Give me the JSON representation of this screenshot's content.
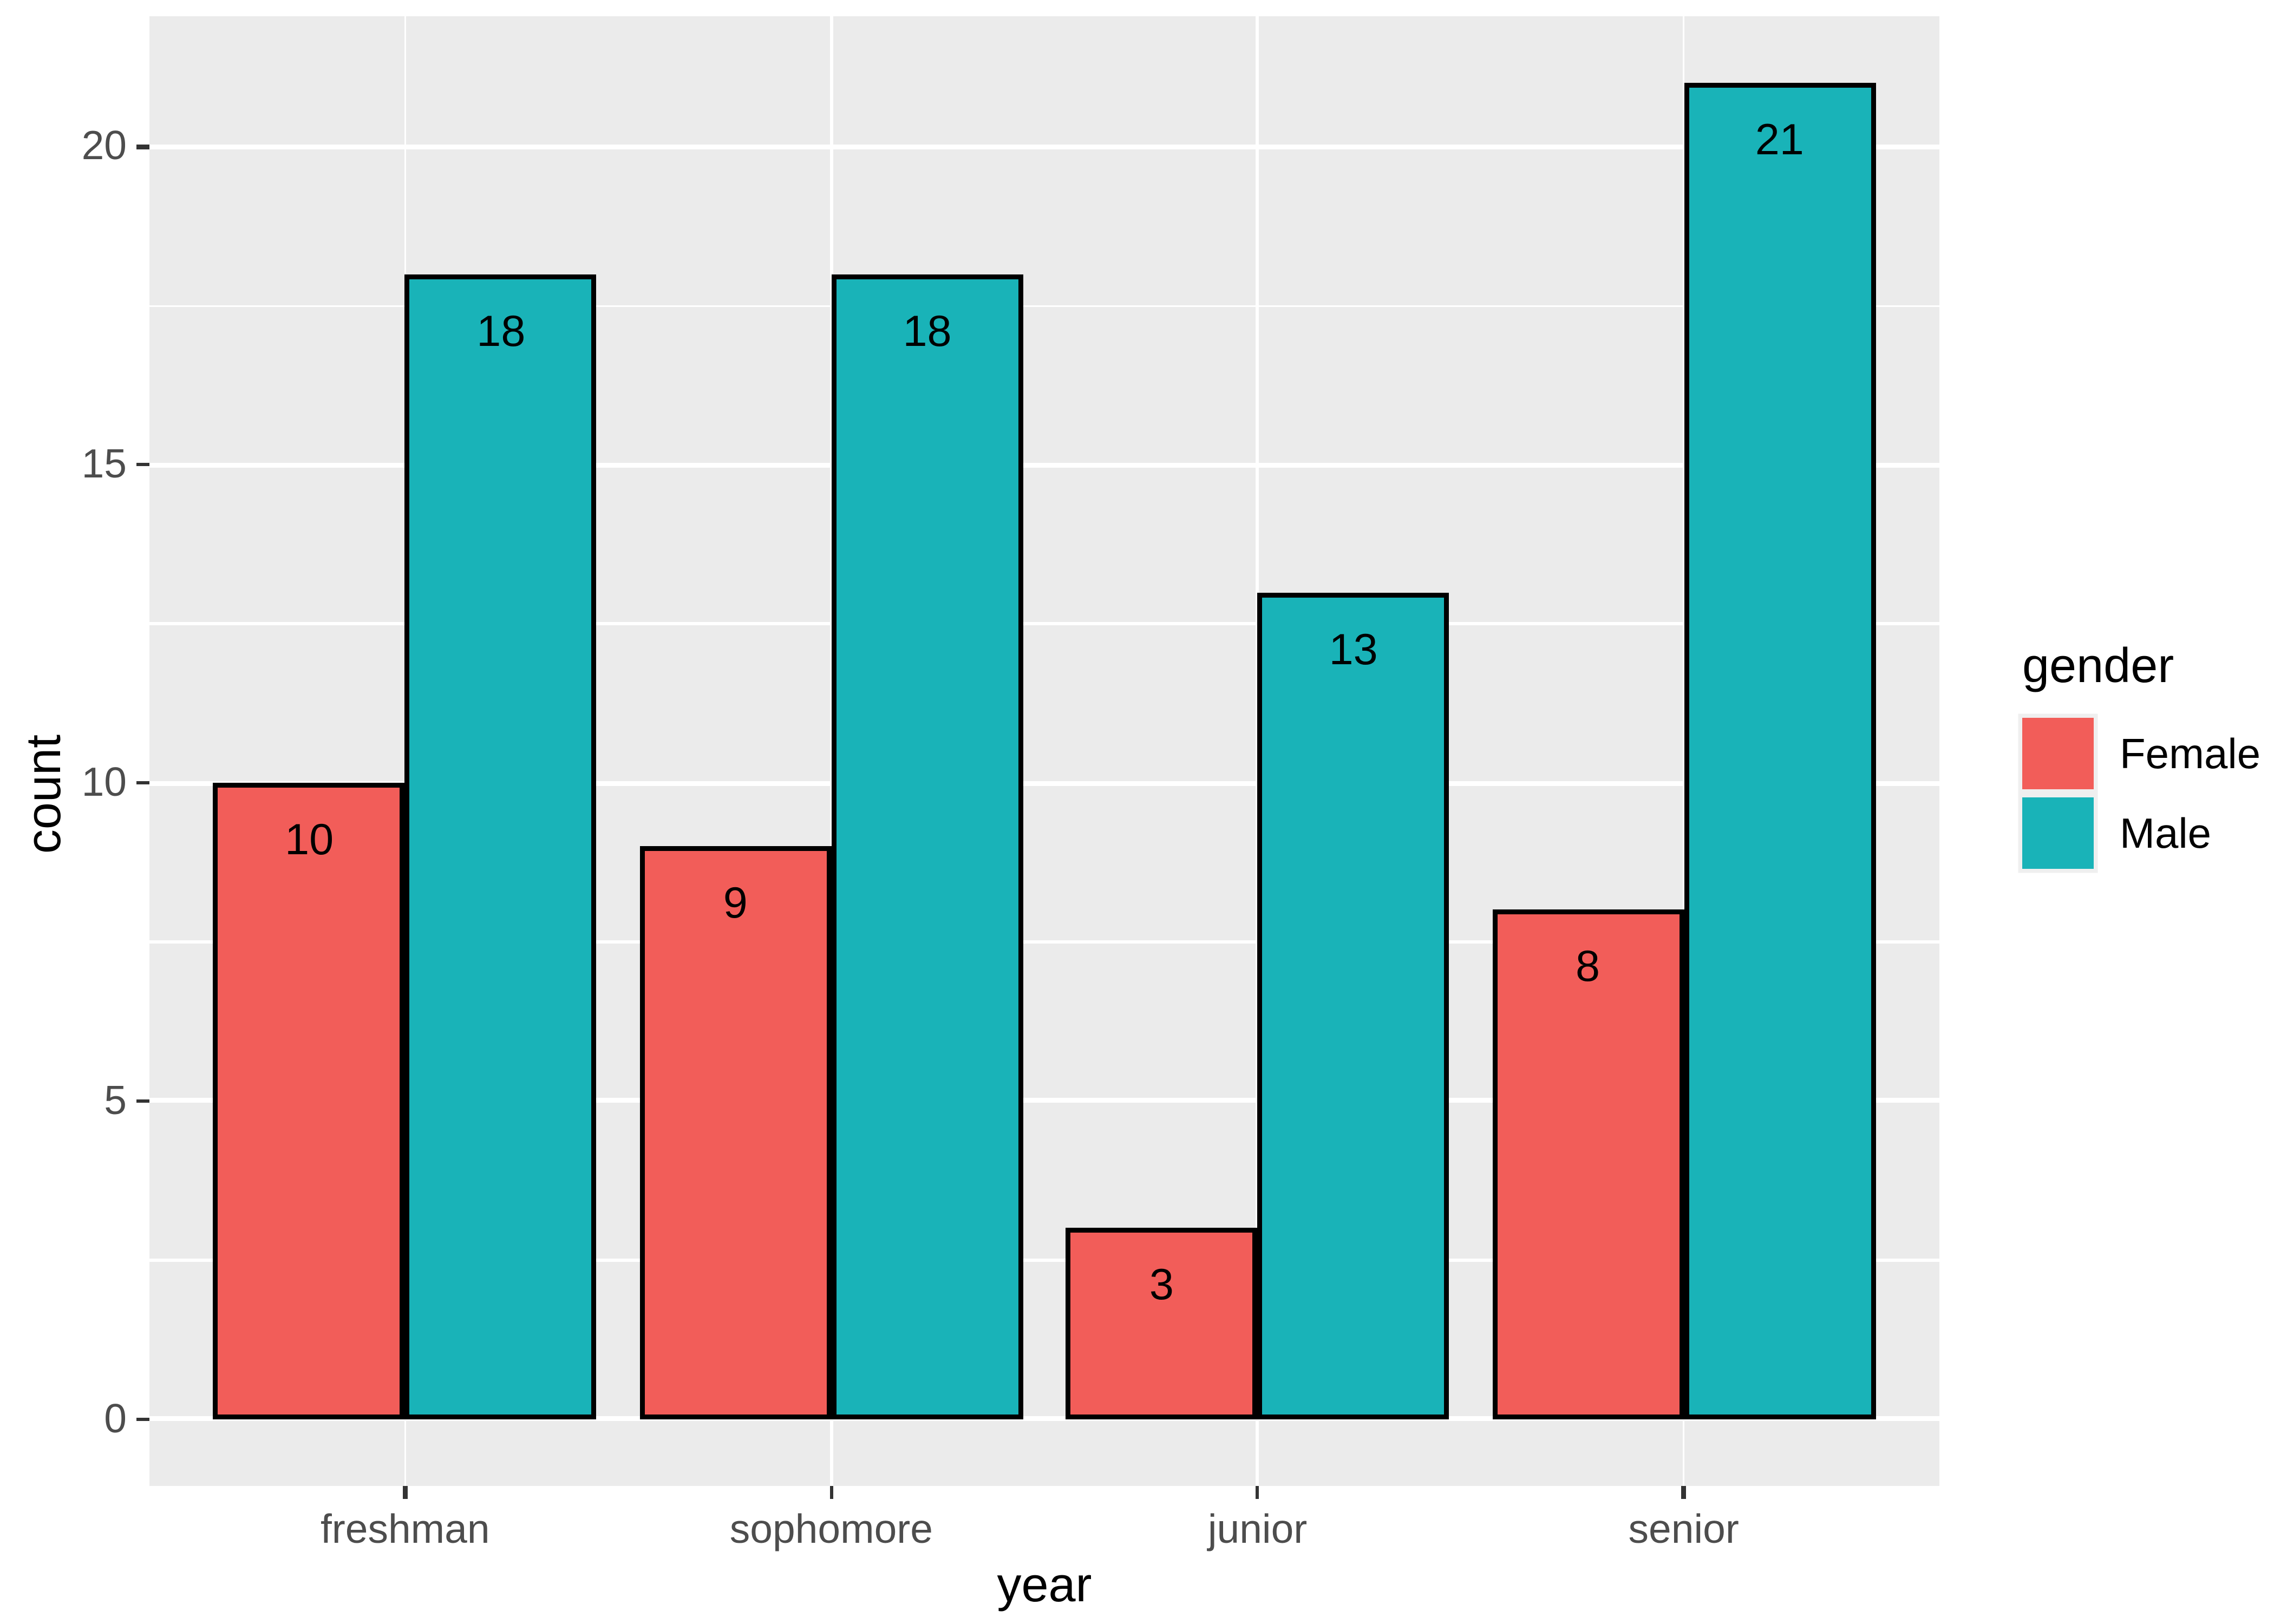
{
  "chart_data": {
    "type": "bar",
    "grouping": "dodge",
    "title": "",
    "xlabel": "year",
    "ylabel": "count",
    "legend_title": "gender",
    "legend_position": "right",
    "categories": [
      "freshman",
      "sophomore",
      "junior",
      "senior"
    ],
    "series": [
      {
        "name": "Female",
        "color": "#F25D59",
        "values": [
          10,
          9,
          3,
          8
        ]
      },
      {
        "name": "Male",
        "color": "#19B3B8",
        "values": [
          18,
          18,
          13,
          21
        ]
      }
    ],
    "bar_value_labels_shown": true,
    "ylim": [
      -1.05,
      22.05
    ],
    "y_breaks": [
      0,
      5,
      10,
      15,
      20
    ],
    "y_break_labels": [
      "0",
      "5",
      "10",
      "15",
      "20"
    ],
    "y_minor_breaks": [
      2.5,
      7.5,
      12.5,
      17.5
    ],
    "grid": "on",
    "style": {
      "panel_background": "#EBEBEB",
      "grid_color": "#FFFFFF",
      "bar_outline_color": "#000000",
      "tick_mark_color": "#333333",
      "tick_label_color": "#4D4D4D",
      "axis_title_color": "#000000",
      "bar_label_color": "#000000",
      "legend_text_color": "#000000"
    }
  }
}
